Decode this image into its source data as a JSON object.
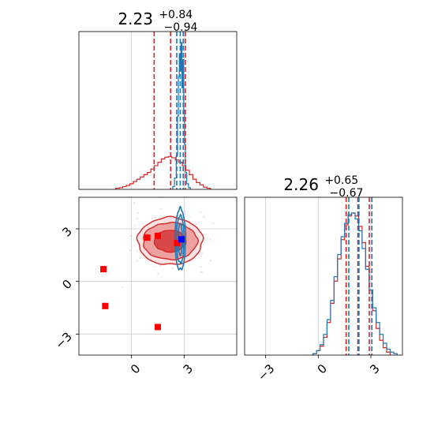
{
  "chart_data": {
    "type": "corner",
    "series": [
      {
        "name": "",
        "color": "#d62728"
      },
      {
        "name": "",
        "color": "#1f77b4"
      }
    ],
    "parameters": [
      {
        "title": {
          "median": "2.23",
          "plus": "+0.84",
          "minus": "−0.94"
        },
        "xlim": [
          -3,
          6
        ],
        "grid_x": [
          0,
          3
        ],
        "hist_red": {
          "x": [
            -0.8,
            -0.6,
            -0.4,
            -0.2,
            0,
            0.2,
            0.4,
            0.6,
            0.8,
            1,
            1.2,
            1.4,
            1.6,
            1.8,
            2,
            2.2,
            2.4,
            2.6,
            2.8,
            3,
            3.2,
            3.4,
            3.6,
            3.8,
            4,
            4.2,
            4.4
          ],
          "y": [
            0.2,
            0.3,
            0.5,
            0.7,
            1.0,
            1.4,
            1.8,
            2.2,
            2.6,
            3.0,
            3.6,
            4.2,
            4.8,
            5.4,
            5.7,
            5.8,
            5.6,
            5.2,
            4.8,
            4.2,
            3.4,
            2.6,
            1.8,
            1.2,
            0.8,
            0.4,
            0.2
          ]
        },
        "hist_blue": {
          "x": [
            2.4,
            2.5,
            2.6,
            2.65,
            2.7,
            2.75,
            2.8,
            2.85,
            2.9,
            2.95,
            3.0,
            3.05,
            3.1,
            3.2,
            3.3
          ],
          "y": [
            0.5,
            2.0,
            6.0,
            13.0,
            20.0,
            24.0,
            21.0,
            26.0,
            18.0,
            23.0,
            14.0,
            8.0,
            3.0,
            1.0,
            0.3
          ]
        },
        "lines_red": [
          1.29,
          2.23,
          3.07
        ],
        "lines_blue": [
          2.58,
          2.78,
          2.95
        ]
      },
      {
        "title": {
          "median": "2.26",
          "plus": "+0.65",
          "minus": "−0.67"
        },
        "xlim": [
          -4.2,
          4.8
        ],
        "ticks": [
          -3,
          0,
          3
        ],
        "tick_labels": [
          "−3",
          "0",
          "3"
        ],
        "hist_red": {
          "x": [
            -0.2,
            0,
            0.2,
            0.4,
            0.6,
            0.8,
            1.0,
            1.2,
            1.4,
            1.6,
            1.8,
            2.0,
            2.2,
            2.4,
            2.6,
            2.8,
            3.0,
            3.2,
            3.4,
            3.6,
            3.8,
            4.0
          ],
          "y": [
            0.1,
            0.3,
            0.6,
            1.2,
            2.2,
            3.5,
            5.0,
            6.5,
            7.8,
            8.8,
            9.4,
            9.6,
            9.4,
            8.7,
            7.6,
            6.0,
            4.4,
            3.0,
            1.8,
            1.0,
            0.5,
            0.2
          ]
        },
        "hist_blue": {
          "x": [
            -0.2,
            0,
            0.2,
            0.4,
            0.6,
            0.8,
            1.0,
            1.2,
            1.4,
            1.6,
            1.8,
            2.0,
            2.2,
            2.4,
            2.6,
            2.8,
            3.0,
            3.2,
            3.4,
            3.6,
            3.8,
            4.0,
            4.2,
            4.4
          ],
          "y": [
            0.1,
            0.3,
            0.7,
            1.4,
            2.4,
            3.7,
            5.3,
            6.8,
            8.0,
            8.9,
            9.5,
            9.6,
            9.2,
            8.4,
            7.2,
            5.8,
            4.4,
            3.2,
            2.2,
            1.4,
            0.8,
            0.4,
            0.2,
            0.1
          ]
        },
        "lines_red": [
          1.59,
          2.26,
          2.91
        ],
        "lines_blue": [
          1.74,
          2.32,
          3.06
        ]
      }
    ],
    "joint": {
      "xlim": [
        -3,
        6
      ],
      "ylim": [
        -4.2,
        4.8
      ],
      "xticks": [
        0,
        3
      ],
      "xtick_labels": [
        "0",
        "3"
      ],
      "yticks": [
        -3,
        0,
        3
      ],
      "ytick_labels": [
        "−3",
        "0",
        "3"
      ],
      "red_center": [
        2.2,
        2.3
      ],
      "red_contours": [
        [
          0.9,
          0.62
        ],
        [
          1.55,
          1.05
        ],
        [
          1.85,
          1.35
        ]
      ],
      "blue_center": [
        2.78,
        2.4
      ],
      "blue_contours": [
        [
          0.12,
          0.9
        ],
        [
          0.22,
          1.35
        ],
        [
          0.3,
          1.75
        ]
      ],
      "red_squares": [
        [
          -1.6,
          0.7
        ],
        [
          -1.5,
          -1.4
        ],
        [
          0.9,
          2.5
        ],
        [
          1.5,
          2.6
        ],
        [
          2.6,
          2.2
        ],
        [
          1.5,
          -2.6
        ]
      ],
      "blue_square": [
        2.85,
        2.4
      ]
    }
  }
}
